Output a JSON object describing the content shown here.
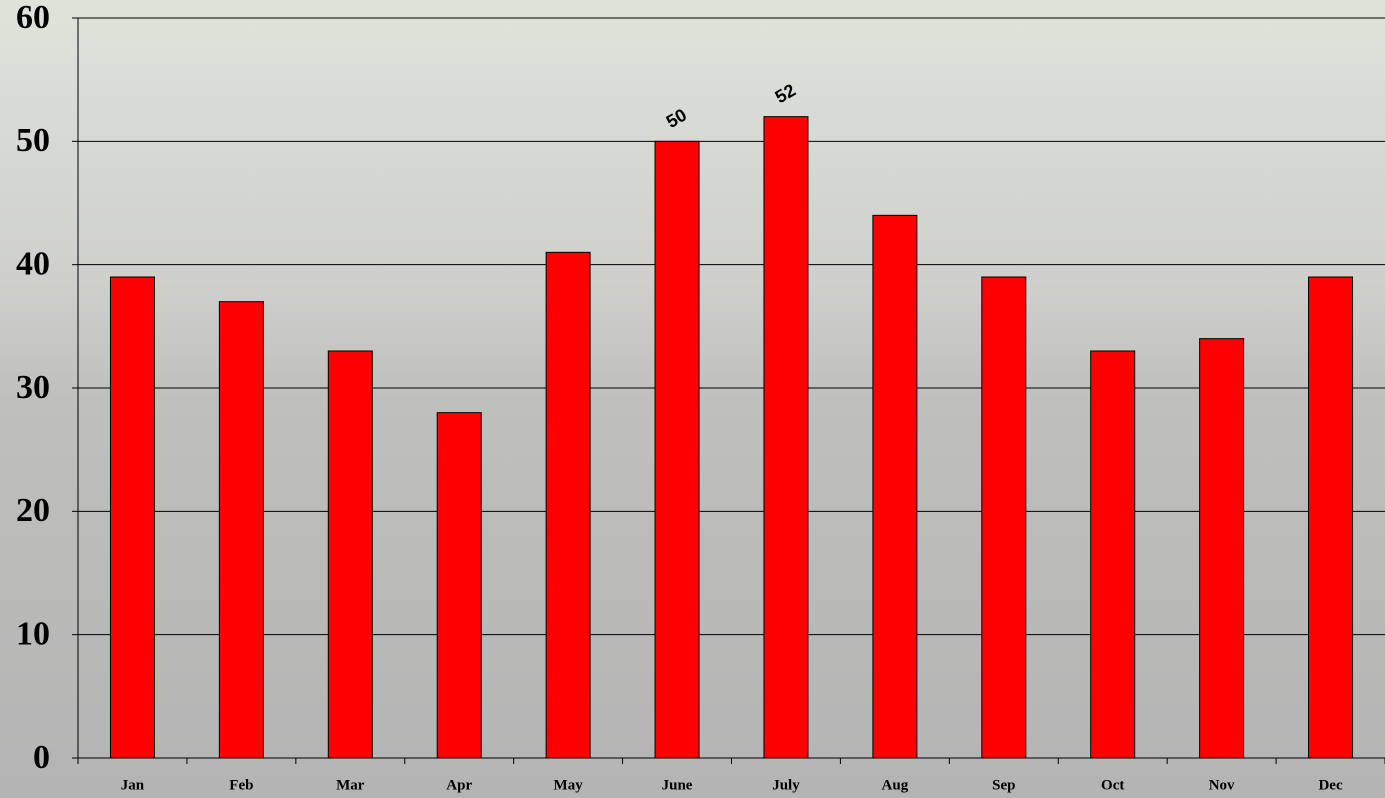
{
  "chart_data": {
    "type": "bar",
    "categories": [
      "Jan",
      "Feb",
      "Mar",
      "Apr",
      "May",
      "June",
      "July",
      "Aug",
      "Sep",
      "Oct",
      "Nov",
      "Dec"
    ],
    "values": [
      39,
      37,
      33,
      28,
      41,
      50,
      52,
      44,
      39,
      33,
      34,
      39
    ],
    "value_labels": [
      null,
      null,
      null,
      null,
      null,
      "50",
      "52",
      null,
      null,
      null,
      null,
      null
    ],
    "color": "#ff0000",
    "ylim": [
      0,
      60
    ],
    "yticks": [
      0,
      10,
      20,
      30,
      40,
      50,
      60
    ],
    "grid": true
  }
}
